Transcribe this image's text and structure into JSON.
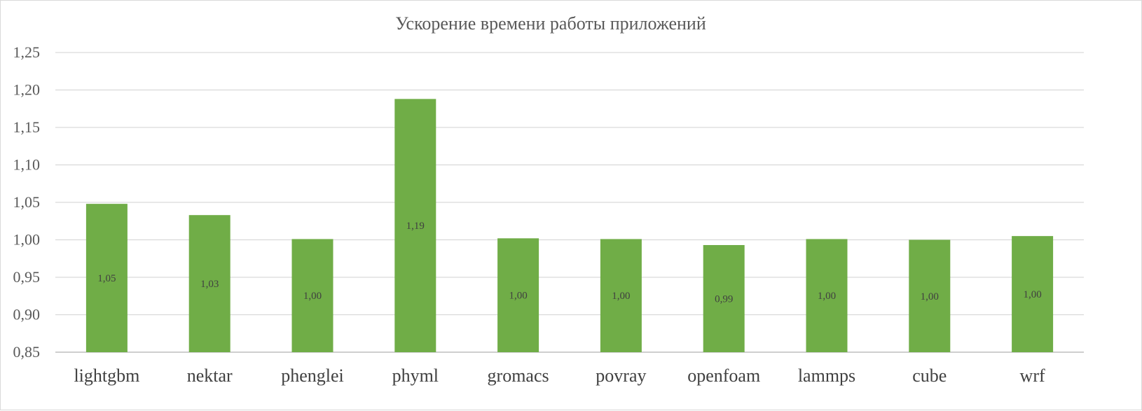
{
  "chart_data": {
    "type": "bar",
    "title": "Ускорение времени работы приложений",
    "xlabel": "",
    "ylabel": "",
    "categories": [
      "lightgbm",
      "nektar",
      "phenglei",
      "phyml",
      "gromacs",
      "povray",
      "openfoam",
      "lammps",
      "cube",
      "wrf"
    ],
    "values": [
      1.048,
      1.033,
      1.001,
      1.188,
      1.002,
      1.001,
      0.993,
      1.001,
      1.0,
      1.005
    ],
    "data_labels": [
      "1,05",
      "1,03",
      "1,00",
      "1,19",
      "1,00",
      "1,00",
      "0,99",
      "1,00",
      "1,00",
      "1,00"
    ],
    "ylim": [
      0.85,
      1.25
    ],
    "yticks": [
      0.85,
      0.9,
      0.95,
      1.0,
      1.05,
      1.1,
      1.15,
      1.2,
      1.25
    ],
    "ytick_labels": [
      "0,85",
      "0,90",
      "0,95",
      "1,00",
      "1,05",
      "1,10",
      "1,15",
      "1,20",
      "1,25"
    ],
    "grid": true,
    "legend": "none",
    "bar_color": "#70ad47"
  }
}
